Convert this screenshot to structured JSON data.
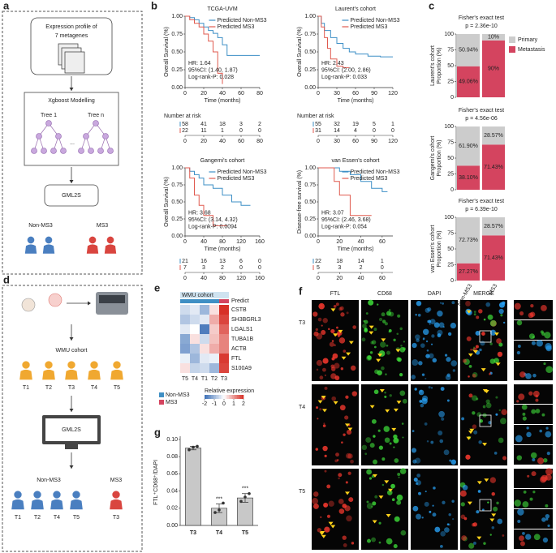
{
  "panel_letters": [
    "a",
    "b",
    "c",
    "d",
    "e",
    "f",
    "g"
  ],
  "panel_a": {
    "input": [
      "Expression profile of",
      "7 metagenes"
    ],
    "model": "Xgboost Modelling",
    "trees": [
      "Tree 1",
      "Tree n"
    ],
    "ellipsis": "...",
    "classifier": "GML2S",
    "groups": [
      {
        "name": "Non-MS3",
        "color": "#4a7fc0"
      },
      {
        "name": "MS3",
        "color": "#d9453f"
      }
    ]
  },
  "panel_b": {
    "risk_title": "Number at risk",
    "plots": [
      {
        "type": "km",
        "title": "TCGA-UVM",
        "xlabel": "Time (months)",
        "ylabel": "Overall Survival (%)",
        "xlim": [
          0,
          80
        ],
        "xticks": [
          0,
          20,
          40,
          60,
          80
        ],
        "ylim": [
          0,
          1
        ],
        "yticks": [
          {
            "value": 0,
            "label": "0.00"
          },
          {
            "value": 0.25,
            "label": "0.25"
          },
          {
            "value": 0.5,
            "label": "0.50"
          },
          {
            "value": 0.75,
            "label": "0.75"
          },
          {
            "value": 1,
            "label": "1.00"
          }
        ],
        "series": [
          {
            "name": "Predicted Non-MS3",
            "color": "#3d8fc6",
            "x": [
              0,
              5,
              10,
              15,
              20,
              25,
              30,
              35,
              40,
              45,
              60,
              80
            ],
            "values": [
              1,
              0.98,
              0.95,
              0.9,
              0.85,
              0.8,
              0.76,
              0.7,
              0.6,
              0.45,
              0.45,
              0.45
            ]
          },
          {
            "name": "Predicted MS3",
            "color": "#e05a4f",
            "x": [
              0,
              5,
              10,
              15,
              20,
              25,
              30,
              35,
              40
            ],
            "values": [
              1,
              0.95,
              0.9,
              0.85,
              0.75,
              0.65,
              0.5,
              0.2,
              0.05
            ]
          }
        ],
        "annotations": [
          "HR: 1.64",
          "95%CI: (1.40, 1.87)",
          "Log-rank-P: 0.028"
        ],
        "risk": [
          [
            58,
            41,
            18,
            3,
            2
          ],
          [
            22,
            11,
            1,
            0,
            0
          ]
        ]
      },
      {
        "type": "km",
        "title": "Laurent's cohort",
        "xlabel": "Time (months)",
        "ylabel": "Overall Survival (%)",
        "xlim": [
          0,
          120
        ],
        "xticks": [
          0,
          30,
          60,
          90,
          120
        ],
        "ylim": [
          0,
          1
        ],
        "yticks": [
          {
            "value": 0,
            "label": "0.00"
          },
          {
            "value": 0.25,
            "label": "0.25"
          },
          {
            "value": 0.5,
            "label": "0.50"
          },
          {
            "value": 0.75,
            "label": "0.75"
          },
          {
            "value": 1,
            "label": "1.00"
          }
        ],
        "series": [
          {
            "name": "Predicted Non-MS3",
            "color": "#3d8fc6",
            "x": [
              0,
              5,
              10,
              20,
              30,
              40,
              50,
              60,
              80,
              100,
              120
            ],
            "values": [
              1,
              0.9,
              0.8,
              0.7,
              0.62,
              0.55,
              0.5,
              0.47,
              0.44,
              0.43,
              0.43
            ]
          },
          {
            "name": "Predicted MS3",
            "color": "#e05a4f",
            "x": [
              0,
              5,
              10,
              15,
              20,
              30,
              40,
              50
            ],
            "values": [
              1,
              0.85,
              0.7,
              0.55,
              0.4,
              0.3,
              0.28,
              0.28
            ]
          }
        ],
        "annotations": [
          "HR: 2.43",
          "95%CI: (2.00, 2.86)",
          "Log-rank-P: 0.033"
        ],
        "risk": [
          [
            55,
            32,
            19,
            5,
            1
          ],
          [
            31,
            14,
            4,
            0,
            0
          ]
        ]
      },
      {
        "type": "km",
        "title": "Gangemi's cohort",
        "xlabel": "Time (months)",
        "ylabel": "Overall Survival (%)",
        "xlim": [
          0,
          160
        ],
        "xticks": [
          0,
          40,
          80,
          120,
          160
        ],
        "ylim": [
          0,
          1
        ],
        "yticks": [
          {
            "value": 0,
            "label": "0.00"
          },
          {
            "value": 0.25,
            "label": "0.25"
          },
          {
            "value": 0.5,
            "label": "0.50"
          },
          {
            "value": 0.75,
            "label": "0.75"
          },
          {
            "value": 1,
            "label": "1.00"
          }
        ],
        "series": [
          {
            "name": "Predicted Non-MS3",
            "color": "#3d8fc6",
            "x": [
              0,
              10,
              20,
              30,
              40,
              60,
              80,
              100,
              120,
              140
            ],
            "values": [
              1,
              0.95,
              0.9,
              0.85,
              0.75,
              0.7,
              0.6,
              0.5,
              0.45,
              0.45
            ]
          },
          {
            "name": "Predicted MS3",
            "color": "#e05a4f",
            "x": [
              0,
              10,
              20,
              30,
              40,
              60,
              80,
              90
            ],
            "values": [
              1,
              0.85,
              0.6,
              0.45,
              0.3,
              0.15,
              0.15,
              0.15
            ]
          }
        ],
        "annotations": [
          "HR: 3.68",
          "95%CI: (3.14, 4.32)",
          "Log-rank-P: 0.0094"
        ],
        "risk": [
          [
            21,
            16,
            13,
            6,
            0
          ],
          [
            7,
            3,
            2,
            0,
            0
          ]
        ]
      },
      {
        "type": "km",
        "title": "van Essen's cohort",
        "xlabel": "Time (months)",
        "ylabel": "Disease-free survival (%)",
        "xlim": [
          0,
          70
        ],
        "xticks": [
          0,
          20,
          40,
          60
        ],
        "ylim": [
          0,
          1
        ],
        "yticks": [
          {
            "value": 0,
            "label": "0.00"
          },
          {
            "value": 0.25,
            "label": "0.25"
          },
          {
            "value": 0.5,
            "label": "0.50"
          },
          {
            "value": 0.75,
            "label": "0.75"
          },
          {
            "value": 1,
            "label": "1.00"
          }
        ],
        "series": [
          {
            "name": "Predicted Non-MS3",
            "color": "#3d8fc6",
            "x": [
              0,
              10,
              20,
              30,
              40,
              50,
              60,
              65
            ],
            "values": [
              1,
              1,
              0.95,
              0.9,
              0.8,
              0.7,
              0.65,
              0.65
            ]
          },
          {
            "name": "Predicted MS3",
            "color": "#e05a4f",
            "x": [
              0,
              15,
              20,
              30,
              40,
              50
            ],
            "values": [
              1,
              0.8,
              0.6,
              0.3,
              0.3,
              0.3
            ]
          }
        ],
        "annotations": [
          "HR: 3.07",
          "95%CI: (2.46, 3.68)",
          "Log-rank-P: 0.054"
        ],
        "risk": [
          [
            22,
            18,
            14,
            1
          ],
          [
            5,
            3,
            2,
            0
          ]
        ]
      }
    ]
  },
  "panel_c": {
    "categories": [
      "Non-MS3",
      "MS3"
    ],
    "series": [
      {
        "name": "Primary",
        "color": "#cccccc"
      },
      {
        "name": "Metastasis",
        "color": "#d4445f"
      }
    ],
    "ylabel": "Proportion (%)",
    "ylim": [
      0,
      100
    ],
    "yticks": [
      0,
      25,
      50,
      75,
      100
    ],
    "charts": [
      {
        "type": "stacked-bar",
        "title": "Fisher's exact test",
        "subtitle": "p = 2.36e-10",
        "cohort": "Laurent's cohort",
        "values": [
          [
            50.94,
            10
          ],
          [
            49.06,
            90
          ]
        ],
        "value_labels": [
          [
            "50.94%",
            "10%"
          ],
          [
            "49.06%",
            "90%"
          ]
        ]
      },
      {
        "type": "stacked-bar",
        "title": "Fisher's exact test",
        "subtitle": "p = 4.56e-06",
        "cohort": "Gangemi's cohort",
        "values": [
          [
            61.9,
            28.57
          ],
          [
            38.1,
            71.43
          ]
        ],
        "value_labels": [
          [
            "61.90%",
            "28.57%"
          ],
          [
            "38.10%",
            "71.43%"
          ]
        ]
      },
      {
        "type": "stacked-bar",
        "title": "Fisher's exact test",
        "subtitle": "p = 6.39e-10",
        "cohort": "van Essen's cohort",
        "values": [
          [
            72.73,
            28.57
          ],
          [
            27.27,
            71.43
          ]
        ],
        "value_labels": [
          [
            "72.73%",
            "28.57%"
          ],
          [
            "27.27%",
            "71.43%"
          ]
        ]
      }
    ]
  },
  "panel_d": {
    "cohort": "WMU cohort",
    "samples": [
      "T1",
      "T2",
      "T3",
      "T4",
      "T5"
    ],
    "classifier": "GML2S",
    "groups": [
      {
        "name": "Non-MS3",
        "color": "#4a7fc0",
        "samples": [
          "T1",
          "T2",
          "T4",
          "T5"
        ]
      },
      {
        "name": "MS3",
        "color": "#d9453f",
        "samples": [
          "T3"
        ]
      }
    ]
  },
  "panel_e": {
    "type": "heatmap",
    "title": "WMU cohort",
    "row_header": "Predict",
    "columns": [
      "T5",
      "T4",
      "T1",
      "T2",
      "T3"
    ],
    "column_group": [
      0,
      0,
      0,
      0,
      1
    ],
    "rows": [
      "CSTB",
      "SH3BGRL3",
      "LGALS1",
      "TUBA1B",
      "ACTB",
      "FTL",
      "S100A9"
    ],
    "values": [
      [
        -0.5,
        -0.3,
        -1,
        0.3,
        2
      ],
      [
        -0.8,
        -0.5,
        -0.3,
        0.8,
        1.8
      ],
      [
        -0.3,
        0,
        -1.8,
        0.5,
        1.5
      ],
      [
        -1.2,
        0.3,
        -0.5,
        0.6,
        1.2
      ],
      [
        -1.3,
        -0.8,
        0.3,
        0.8,
        1.2
      ],
      [
        -0.2,
        -1,
        -0.3,
        -0.2,
        1.9
      ],
      [
        0.3,
        -0.6,
        -0.5,
        -1,
        1.8
      ]
    ],
    "groups": [
      {
        "name": "Non-MS3",
        "color": "#3f8fc4"
      },
      {
        "name": "MS3",
        "color": "#d4445f"
      }
    ],
    "colorbar_title": "Relative expression",
    "colorbar_lim": [
      -2,
      2
    ],
    "colorbar_ticks": [
      -2,
      -1,
      0,
      1,
      2
    ]
  },
  "panel_f": {
    "columns": [
      "FTL",
      "CD68",
      "DAPI",
      "MERGE"
    ],
    "rows": [
      "T3",
      "T4",
      "T5"
    ]
  },
  "panel_g": {
    "type": "bar",
    "ylabel": "FTL⁺CD68⁺/DAPI",
    "categories": [
      "T3",
      "T4",
      "T5"
    ],
    "values": [
      0.09,
      0.02,
      0.032
    ],
    "errors": [
      0.002,
      0.005,
      0.005
    ],
    "points": [
      [
        0.088,
        0.091,
        0.092
      ],
      [
        0.015,
        0.018,
        0.026
      ],
      [
        0.028,
        0.033,
        0.037
      ]
    ],
    "annotations": [
      null,
      "***",
      "***"
    ],
    "color": "#c8c8c8",
    "ylim": [
      0,
      0.1
    ],
    "yticks": [
      {
        "value": 0,
        "label": "0.00"
      },
      {
        "value": 0.02,
        "label": "0.02"
      },
      {
        "value": 0.04,
        "label": "0.04"
      },
      {
        "value": 0.06,
        "label": "0.06"
      },
      {
        "value": 0.08,
        "label": "0.08"
      },
      {
        "value": 0.1,
        "label": "0.10"
      }
    ]
  }
}
